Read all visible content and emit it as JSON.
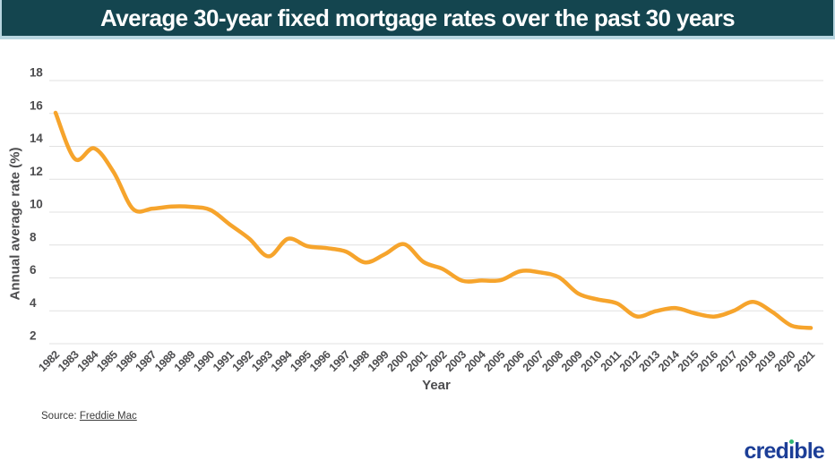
{
  "header": {
    "title": "Average 30-year fixed mortgage rates over the past 30 years"
  },
  "chart_data": {
    "type": "line",
    "title": "Average 30-year fixed mortgage rates over the past 30 years",
    "xlabel": "Year",
    "ylabel": "Annual average rate (%)",
    "ylim": [
      2,
      18
    ],
    "yticks": [
      18,
      16,
      14,
      12,
      10,
      8,
      6,
      4,
      2
    ],
    "grid": true,
    "legend": false,
    "line_color": "#F6A42C",
    "x": [
      1982,
      1983,
      1984,
      1985,
      1986,
      1987,
      1988,
      1989,
      1990,
      1991,
      1992,
      1993,
      1994,
      1995,
      1996,
      1997,
      1998,
      1999,
      2000,
      2001,
      2002,
      2003,
      2004,
      2005,
      2006,
      2007,
      2008,
      2009,
      2010,
      2011,
      2012,
      2013,
      2014,
      2015,
      2016,
      2017,
      2018,
      2019,
      2020,
      2021
    ],
    "values": [
      16.04,
      13.24,
      13.88,
      12.43,
      10.19,
      10.21,
      10.34,
      10.32,
      10.13,
      9.25,
      8.39,
      7.31,
      8.38,
      7.93,
      7.81,
      7.6,
      6.94,
      7.44,
      8.05,
      6.97,
      6.54,
      5.83,
      5.84,
      5.87,
      6.41,
      6.34,
      6.03,
      5.04,
      4.69,
      4.45,
      3.66,
      3.98,
      4.17,
      3.85,
      3.65,
      3.99,
      4.54,
      3.94,
      3.1,
      2.96
    ]
  },
  "footer": {
    "source_label": "Source:",
    "source_link_text": "Freddie Mac"
  },
  "logo": {
    "text": "credible",
    "parts": [
      "cred",
      "ı",
      "ble"
    ]
  },
  "colors": {
    "header_bg": "#14454F",
    "header_border": "#B7D5E0",
    "line": "#F6A42C",
    "grid": "#E1E1E1",
    "tick_text": "#4D4D4F",
    "logo_blue": "#1C3E97",
    "logo_green": "#2FB673"
  }
}
